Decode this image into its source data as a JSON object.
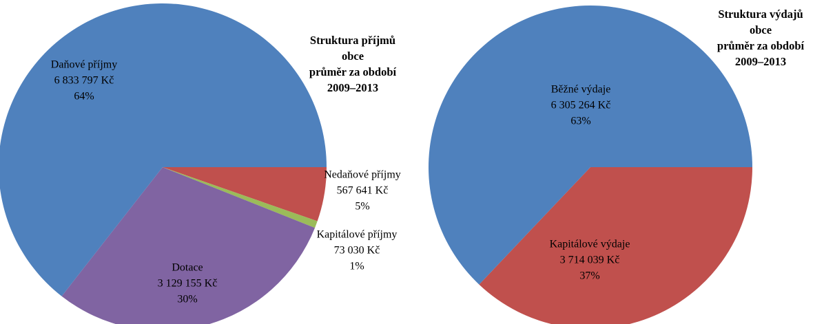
{
  "chart_data": [
    {
      "type": "pie",
      "title_lines": [
        "Struktura příjmů",
        "obce",
        "průměr  za období",
        "2009–2013"
      ],
      "categories": [
        "Nedaňové příjmy",
        "Kapitálové příjmy",
        "Dotace",
        "Daňové příjmy"
      ],
      "values": [
        567641,
        73030,
        3129155,
        6833797
      ],
      "value_labels": [
        "567 641 Kč",
        "73 030 Kč",
        "3 129 155 Kč",
        "6 833 797 Kč"
      ],
      "percent_labels": [
        "5%",
        "1%",
        "30%",
        "64%"
      ],
      "colors": [
        "#c0504d",
        "#9bbb59",
        "#8064a2",
        "#4f81bd"
      ]
    },
    {
      "type": "pie",
      "title_lines": [
        "Struktura výdajů",
        "obce",
        "průměr  za období",
        "2009–2013"
      ],
      "categories": [
        "Kapitálové výdaje",
        "Běžné výdaje"
      ],
      "values": [
        3714039,
        6305264
      ],
      "value_labels": [
        "3 714 039 Kč",
        "6 305 264 Kč"
      ],
      "percent_labels": [
        "37%",
        "63%"
      ],
      "colors": [
        "#c0504d",
        "#4f81bd"
      ]
    }
  ]
}
